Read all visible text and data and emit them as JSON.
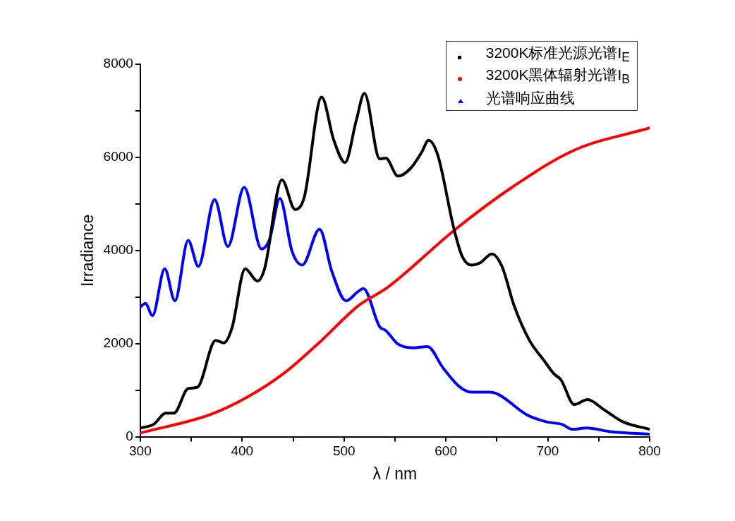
{
  "chart_data": {
    "type": "line",
    "xlabel": "λ / nm",
    "ylabel": "Irradiance",
    "xlim": [
      300,
      800
    ],
    "ylim": [
      0,
      8000
    ],
    "xticks": [
      300,
      {
        "value": 350,
        "label": null
      },
      400,
      {
        "value": 450,
        "label": null
      },
      500,
      {
        "value": 550,
        "label": null
      },
      600,
      {
        "value": 650,
        "label": null
      },
      700,
      {
        "value": 750,
        "label": null
      },
      800
    ],
    "yticks": [
      0,
      {
        "value": 1000,
        "label": null
      },
      2000,
      {
        "value": 3000,
        "label": null
      },
      4000,
      {
        "value": 5000,
        "label": null
      },
      6000,
      {
        "value": 7000,
        "label": null
      },
      8000
    ],
    "grid": false,
    "legend": "top right",
    "line_style": "solid",
    "series": [
      {
        "name": "3200K标准光源光谱I$_{E}$",
        "color": "#000000",
        "x": [
          300,
          313,
          325,
          333,
          347,
          356,
          374,
          382,
          390,
          403,
          415,
          422,
          439,
          452,
          461,
          478,
          490,
          501,
          512,
          520,
          535,
          541,
          553,
          565,
          576,
          583,
          592,
          608,
          616,
          625,
          634,
          645,
          655,
          667,
          682,
          696,
          706,
          713,
          726,
          739,
          755,
          774,
          800
        ],
        "values": [
          186,
          265,
          504,
          504,
          1034,
          1061,
          2069,
          2016,
          2334,
          3607,
          3342,
          3607,
          5517,
          4880,
          5146,
          7294,
          6366,
          5889,
          6790,
          7374,
          5968,
          5984,
          5597,
          5756,
          6101,
          6366,
          6048,
          4456,
          3873,
          3687,
          3740,
          3926,
          3660,
          2812,
          2069,
          1645,
          1353,
          1220,
          690,
          796,
          584,
          318,
          159
        ]
      },
      {
        "name": "3200K黑体辐射光谱I$_{B}$",
        "color": "#ff0000",
        "x": [
          300,
          369,
          405,
          442,
          478,
          514,
          543,
          608,
          665,
          726,
          800
        ],
        "values": [
          80,
          477,
          849,
          1379,
          2069,
          2812,
          3210,
          4430,
          5358,
          6154,
          6631
        ]
      },
      {
        "name": "光谱响应曲线",
        "color": "#0000ff",
        "x": [
          300,
          305,
          312,
          324,
          334,
          347,
          357,
          373,
          386,
          402,
          419,
          427,
          437,
          449,
          459,
          476,
          488,
          502,
          513,
          519,
          535,
          541,
          553,
          568,
          582,
          597,
          614,
          626,
          643,
          652,
          679,
          699,
          714,
          724,
          738,
          762,
          800
        ],
        "values": [
          2785,
          2865,
          2600,
          3607,
          2918,
          4218,
          3660,
          5093,
          4085,
          5358,
          4032,
          4244,
          5119,
          3979,
          3687,
          4456,
          3554,
          2918,
          3103,
          3183,
          2361,
          2281,
          1989,
          1910,
          1936,
          1485,
          1061,
          955,
          955,
          902,
          477,
          318,
          265,
          159,
          186,
          106,
          53
        ]
      }
    ]
  }
}
